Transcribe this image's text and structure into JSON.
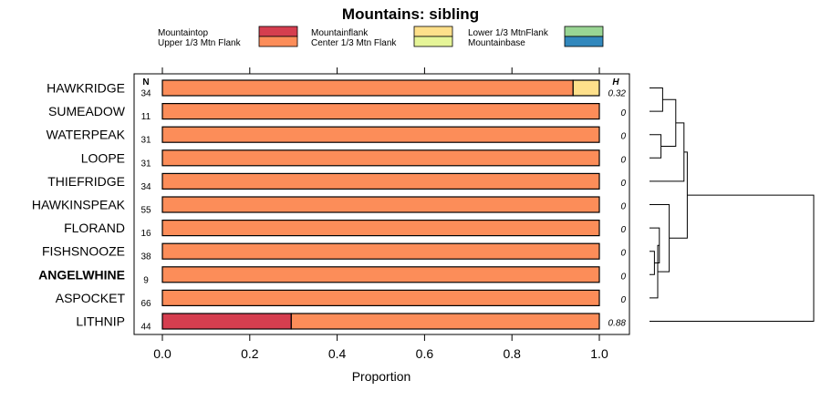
{
  "colors": {
    "Mountaintop": "#d53e4f",
    "Upper 1/3 Mtn Flank": "#fc8d59",
    "Mountainflank": "#fee08b",
    "Center 1/3 Mtn Flank": "#e6f598",
    "Lower 1/3 MtnFlank": "#99d594",
    "Mountainbase": "#3288bd"
  },
  "chart_data": {
    "type": "bar",
    "orientation": "horizontal-stacked",
    "title": "Mountains: sibling",
    "xlabel": "Proportion",
    "ylabel": "",
    "xlim": [
      0,
      1
    ],
    "x_ticks": [
      "0.0",
      "0.2",
      "0.4",
      "0.6",
      "0.8",
      "1.0"
    ],
    "x_tick_values": [
      0,
      0.2,
      0.4,
      0.6,
      0.8,
      1.0
    ],
    "legend": [
      "Mountaintop",
      "Upper 1/3 Mtn Flank",
      "Mountainflank",
      "Center 1/3 Mtn Flank",
      "Lower 1/3 MtnFlank",
      "Mountainbase"
    ],
    "n_header": "N",
    "h_header": "H",
    "rows": [
      {
        "label": "HAWKRIDGE",
        "n": "34",
        "h": "0.32",
        "bold": false,
        "segments": {
          "Mountaintop": 0,
          "Upper 1/3 Mtn Flank": 0.94,
          "Mountainflank": 0.06,
          "Center 1/3 Mtn Flank": 0,
          "Lower 1/3 MtnFlank": 0,
          "Mountainbase": 0
        }
      },
      {
        "label": "SUMEADOW",
        "n": "11",
        "h": "0",
        "bold": false,
        "segments": {
          "Mountaintop": 0,
          "Upper 1/3 Mtn Flank": 1.0,
          "Mountainflank": 0,
          "Center 1/3 Mtn Flank": 0,
          "Lower 1/3 MtnFlank": 0,
          "Mountainbase": 0
        }
      },
      {
        "label": "WATERPEAK",
        "n": "31",
        "h": "0",
        "bold": false,
        "segments": {
          "Mountaintop": 0,
          "Upper 1/3 Mtn Flank": 1.0,
          "Mountainflank": 0,
          "Center 1/3 Mtn Flank": 0,
          "Lower 1/3 MtnFlank": 0,
          "Mountainbase": 0
        }
      },
      {
        "label": "LOOPE",
        "n": "31",
        "h": "0",
        "bold": false,
        "segments": {
          "Mountaintop": 0,
          "Upper 1/3 Mtn Flank": 1.0,
          "Mountainflank": 0,
          "Center 1/3 Mtn Flank": 0,
          "Lower 1/3 MtnFlank": 0,
          "Mountainbase": 0
        }
      },
      {
        "label": "THIEFRIDGE",
        "n": "34",
        "h": "0",
        "bold": false,
        "segments": {
          "Mountaintop": 0,
          "Upper 1/3 Mtn Flank": 1.0,
          "Mountainflank": 0,
          "Center 1/3 Mtn Flank": 0,
          "Lower 1/3 MtnFlank": 0,
          "Mountainbase": 0
        }
      },
      {
        "label": "HAWKINSPEAK",
        "n": "55",
        "h": "0",
        "bold": false,
        "segments": {
          "Mountaintop": 0,
          "Upper 1/3 Mtn Flank": 1.0,
          "Mountainflank": 0,
          "Center 1/3 Mtn Flank": 0,
          "Lower 1/3 MtnFlank": 0,
          "Mountainbase": 0
        }
      },
      {
        "label": "FLORAND",
        "n": "16",
        "h": "0",
        "bold": false,
        "segments": {
          "Mountaintop": 0,
          "Upper 1/3 Mtn Flank": 1.0,
          "Mountainflank": 0,
          "Center 1/3 Mtn Flank": 0,
          "Lower 1/3 MtnFlank": 0,
          "Mountainbase": 0
        }
      },
      {
        "label": "FISHSNOOZE",
        "n": "38",
        "h": "0",
        "bold": false,
        "segments": {
          "Mountaintop": 0,
          "Upper 1/3 Mtn Flank": 1.0,
          "Mountainflank": 0,
          "Center 1/3 Mtn Flank": 0,
          "Lower 1/3 MtnFlank": 0,
          "Mountainbase": 0
        }
      },
      {
        "label": "ANGELWHINE",
        "n": "9",
        "h": "0",
        "bold": true,
        "segments": {
          "Mountaintop": 0,
          "Upper 1/3 Mtn Flank": 1.0,
          "Mountainflank": 0,
          "Center 1/3 Mtn Flank": 0,
          "Lower 1/3 MtnFlank": 0,
          "Mountainbase": 0
        }
      },
      {
        "label": "ASPOCKET",
        "n": "66",
        "h": "0",
        "bold": false,
        "segments": {
          "Mountaintop": 0,
          "Upper 1/3 Mtn Flank": 1.0,
          "Mountainflank": 0,
          "Center 1/3 Mtn Flank": 0,
          "Lower 1/3 MtnFlank": 0,
          "Mountainbase": 0
        }
      },
      {
        "label": "LITHNIP",
        "n": "44",
        "h": "0.88",
        "bold": false,
        "segments": {
          "Mountaintop": 0.295,
          "Upper 1/3 Mtn Flank": 0.705,
          "Mountainflank": 0,
          "Center 1/3 Mtn Flank": 0,
          "Lower 1/3 MtnFlank": 0,
          "Mountainbase": 0
        }
      }
    ],
    "dendrogram": {
      "description": "hierarchical clustering of rows (row indices 0-10)",
      "merges": [
        {
          "a": 0,
          "b": 1,
          "height": 0.08
        },
        {
          "a": 2,
          "b": 3,
          "height": 0.07
        },
        {
          "a": 7,
          "b": 8,
          "height": 0.03
        },
        {
          "a": 6,
          "b": [
            7,
            8
          ],
          "height": 0.06
        },
        {
          "a": [
            6,
            7,
            8
          ],
          "b": 9,
          "height": 0.05
        },
        {
          "a": 5,
          "b": [
            6,
            7,
            8,
            9
          ],
          "height": 0.12
        },
        {
          "a": [
            0,
            1
          ],
          "b": [
            2,
            3
          ],
          "height": 0.16
        },
        {
          "a": [
            0,
            1,
            2,
            3
          ],
          "b": 4,
          "height": 0.21
        },
        {
          "a": [
            0,
            1,
            2,
            3,
            4
          ],
          "b": [
            5,
            6,
            7,
            8,
            9
          ],
          "height": 0.23
        },
        {
          "a": [
            0,
            1,
            2,
            3,
            4,
            5,
            6,
            7,
            8,
            9
          ],
          "b": 10,
          "height": 1.0
        }
      ]
    }
  }
}
